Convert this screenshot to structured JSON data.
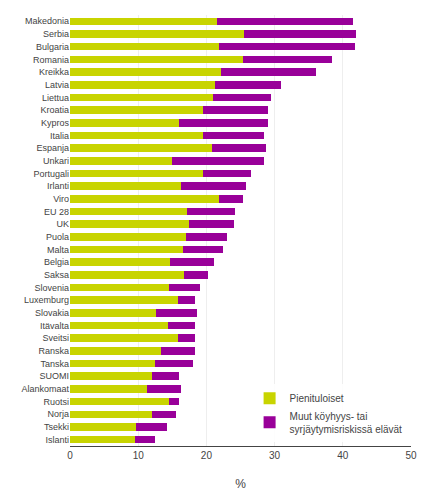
{
  "chart_data": {
    "type": "bar",
    "orientation": "horizontal",
    "stacked": true,
    "categories": [
      "Makedonia",
      "Serbia",
      "Bulgaria",
      "Romania",
      "Kreikka",
      "Latvia",
      "Liettua",
      "Kroatia",
      "Kypros",
      "Italia",
      "Espanja",
      "Unkari",
      "Portugali",
      "Irlanti",
      "Viro",
      "EU 28",
      "UK",
      "Puola",
      "Malta",
      "Belgia",
      "Saksa",
      "Slovenia",
      "Luxemburg",
      "Slovakia",
      "Itävalta",
      "Sveitsi",
      "Ranska",
      "Tanska",
      "SUOMI",
      "Alankomaat",
      "Ruotsi",
      "Norja",
      "Tsekki",
      "Islanti"
    ],
    "series": [
      {
        "name": "Pienituloiset",
        "color": "#c8d400",
        "values": [
          21.5,
          25.5,
          21.8,
          25.4,
          22.1,
          21.2,
          20.9,
          19.5,
          16.0,
          19.5,
          20.8,
          15.0,
          19.5,
          16.3,
          21.8,
          17.2,
          17.5,
          17.0,
          16.5,
          14.6,
          16.7,
          14.5,
          15.9,
          12.6,
          14.4,
          15.9,
          13.3,
          12.5,
          12.0,
          11.3,
          14.5,
          12.0,
          9.7,
          9.5
        ]
      },
      {
        "name": "Muut köyhyys- tai\nsyrjäytymisriskissä elävät",
        "color": "#990099",
        "values": [
          20.0,
          16.5,
          20.0,
          13.0,
          14.0,
          9.8,
          8.5,
          9.5,
          13.0,
          9.0,
          8.0,
          13.5,
          7.0,
          9.5,
          3.5,
          7.0,
          6.5,
          6.0,
          6.0,
          6.5,
          3.5,
          4.5,
          2.5,
          6.0,
          4.0,
          2.5,
          5.0,
          5.5,
          4.0,
          5.0,
          1.5,
          3.5,
          4.5,
          3.0
        ]
      }
    ],
    "xlabel": "%",
    "xlim": [
      0,
      50
    ],
    "xticks": [
      0,
      10,
      20,
      30,
      40,
      50
    ],
    "grid": true,
    "legend": "lower right"
  }
}
